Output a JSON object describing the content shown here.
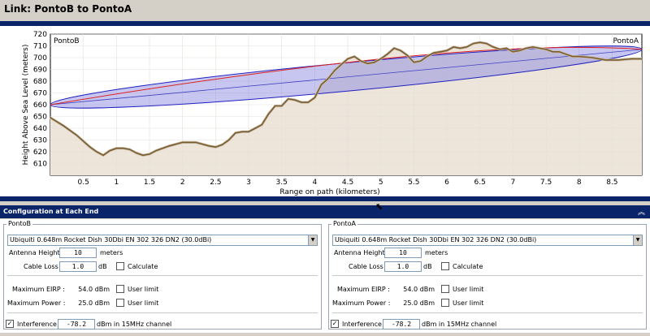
{
  "window": {
    "title": "Link: PontoB to PontoA"
  },
  "chart_data": {
    "type": "area",
    "ylabel": "Height Above Sea Level (meters)",
    "xlabel": "Range on path (kilometers)",
    "xlim": [
      0,
      8.95
    ],
    "ylim": [
      600,
      720
    ],
    "yticks": [
      610,
      620,
      630,
      640,
      650,
      660,
      670,
      680,
      690,
      700,
      710,
      720
    ],
    "xticks": [
      0.5,
      1,
      1.5,
      2,
      2.5,
      3,
      3.5,
      4,
      4.5,
      5,
      5.5,
      6,
      6.5,
      7,
      7.5,
      8,
      8.5
    ],
    "endpoint_labels": {
      "left": "PontoB",
      "right": "PontoA"
    },
    "terrain": {
      "x": [
        0,
        0.2,
        0.4,
        0.6,
        0.7,
        0.8,
        0.9,
        1.0,
        1.1,
        1.2,
        1.3,
        1.4,
        1.5,
        1.6,
        1.8,
        2.0,
        2.2,
        2.4,
        2.5,
        2.6,
        2.7,
        2.8,
        2.9,
        3.0,
        3.1,
        3.2,
        3.3,
        3.4,
        3.5,
        3.6,
        3.7,
        3.8,
        3.9,
        4.0,
        4.1,
        4.2,
        4.3,
        4.4,
        4.5,
        4.6,
        4.7,
        4.8,
        4.9,
        5.0,
        5.1,
        5.2,
        5.3,
        5.4,
        5.5,
        5.6,
        5.7,
        5.8,
        5.9,
        6.0,
        6.1,
        6.2,
        6.3,
        6.4,
        6.5,
        6.6,
        6.7,
        6.8,
        6.9,
        7.0,
        7.1,
        7.2,
        7.3,
        7.4,
        7.5,
        7.6,
        7.7,
        7.8,
        7.9,
        8.0,
        8.2,
        8.4,
        8.6,
        8.8,
        8.95
      ],
      "y": [
        649,
        642,
        634,
        624,
        620,
        617,
        621,
        623,
        623,
        622,
        619,
        617,
        618,
        621,
        625,
        628,
        628,
        625,
        624,
        626,
        630,
        636,
        637,
        637,
        640,
        643,
        652,
        659,
        659,
        665,
        664,
        662,
        662,
        666,
        677,
        682,
        689,
        694,
        699,
        701,
        697,
        695,
        696,
        699,
        703,
        708,
        706,
        702,
        696,
        697,
        701,
        704,
        705,
        706,
        709,
        708,
        709,
        712,
        713,
        712,
        709,
        707,
        708,
        705,
        706,
        708,
        709,
        708,
        707,
        705,
        705,
        703,
        701,
        701,
        700,
        698,
        698,
        699,
        699
      ]
    },
    "los": {
      "start": [
        0,
        660
      ],
      "end": [
        8.95,
        707
      ]
    },
    "fresnel_ellipse": {
      "width_m": 24
    },
    "red_curve": {
      "peak_x": 6.2,
      "peak_y": 711
    },
    "grid": true
  },
  "section": {
    "title": "Configuration at Each End"
  },
  "ends": [
    {
      "name": "PontoB",
      "antenna": "Ubiquiti 0.648m Rocket Dish 30Dbi EN 302 326 DN2 (30.0dBi)",
      "antenna_height_label": "Antenna Height :",
      "antenna_height": "10",
      "meters": "meters",
      "cable_loss_label": "Cable Loss :",
      "cable_loss": "1.0",
      "db": "dB",
      "calculate": "Calculate",
      "max_eirp_label": "Maximum EIRP :",
      "max_eirp": "54.0 dBm",
      "max_power_label": "Maximum Power :",
      "max_power": "25.0 dBm",
      "user_limit": "User limit",
      "interference_label": "Interference :",
      "interference": "-78.2",
      "interference_suffix": "dBm in 15MHz channel"
    },
    {
      "name": "PontoA",
      "antenna": "Ubiquiti 0.648m Rocket Dish 30Dbi EN 302 326 DN2 (30.0dBi)",
      "antenna_height_label": "Antenna Height :",
      "antenna_height": "10",
      "meters": "meters",
      "cable_loss_label": "Cable Loss :",
      "cable_loss": "1.0",
      "db": "dB",
      "calculate": "Calculate",
      "max_eirp_label": "Maximum EIRP :",
      "max_eirp": "54.0 dBm",
      "max_power_label": "Maximum Power :",
      "max_power": "25.0 dBm",
      "user_limit": "User limit",
      "interference_label": "Interference :",
      "interference": "-78.2",
      "interference_suffix": "dBm in 15MHz channel"
    }
  ],
  "colors": {
    "navy": "#0a246a",
    "terrain_fill": "#ede4da",
    "terrain_line": "#7a5c2e",
    "ellipse": "#8080e0",
    "red": "#e02020"
  }
}
